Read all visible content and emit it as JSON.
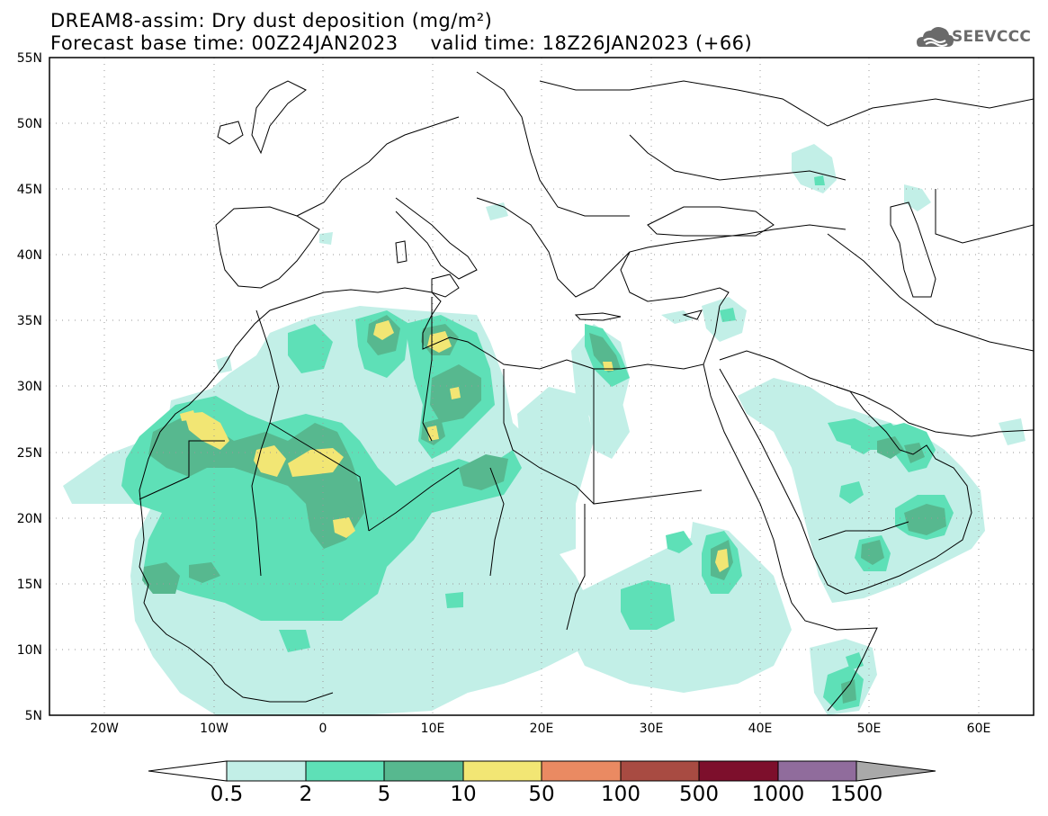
{
  "title": {
    "line1": "DREAM8-assim: Dry dust deposition (mg/m²)",
    "line2": "Forecast base time: 00Z24JAN2023     valid time: 18Z26JAN2023 (+66)"
  },
  "logo": {
    "text": "SEEVCCC",
    "icon": "cloud-logo-icon"
  },
  "map": {
    "lon_range": [
      -25,
      65
    ],
    "lat_range": [
      5,
      55
    ],
    "lat_ticks": [
      "55N",
      "50N",
      "45N",
      "40N",
      "35N",
      "30N",
      "25N",
      "20N",
      "15N",
      "10N",
      "5N"
    ],
    "lon_ticks": [
      "20W",
      "10W",
      "0",
      "10E",
      "20E",
      "30E",
      "40E",
      "50E",
      "60E"
    ],
    "grid": "dotted",
    "coastline_color": "#000000"
  },
  "colorbar": {
    "labels": [
      "0.5",
      "2",
      "5",
      "10",
      "50",
      "100",
      "500",
      "1000",
      "1500"
    ],
    "colors": [
      "#c2efe7",
      "#5ee0b7",
      "#57b88f",
      "#f2e674",
      "#ea8a62",
      "#a84b42",
      "#7d0f2c",
      "#906c9c",
      "#a9a9a9"
    ]
  }
}
